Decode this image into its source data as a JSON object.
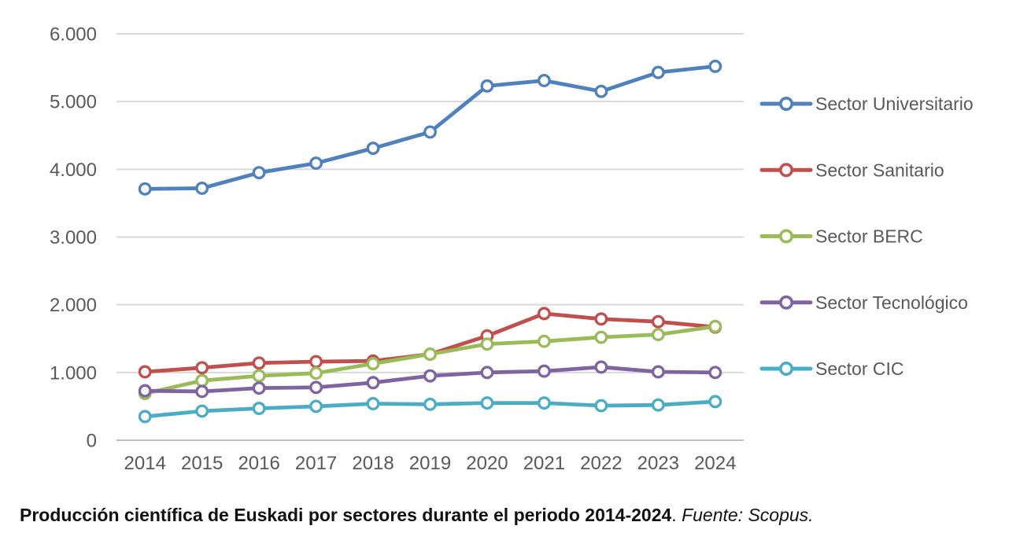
{
  "chart_data": {
    "type": "line",
    "x": [
      2014,
      2015,
      2016,
      2017,
      2018,
      2019,
      2020,
      2021,
      2022,
      2023,
      2024
    ],
    "series": [
      {
        "name": "Sector Universitario",
        "color": "#4F81BD",
        "values": [
          3710,
          3720,
          3950,
          4090,
          4310,
          4550,
          5230,
          5310,
          5150,
          5430,
          5520
        ]
      },
      {
        "name": "Sector Sanitario",
        "color": "#C0504D",
        "values": [
          1010,
          1070,
          1140,
          1160,
          1170,
          1270,
          1540,
          1870,
          1790,
          1750,
          1670
        ]
      },
      {
        "name": "Sector BERC",
        "color": "#9BBB59",
        "values": [
          690,
          880,
          950,
          990,
          1130,
          1270,
          1420,
          1460,
          1520,
          1560,
          1680
        ]
      },
      {
        "name": "Sector Tecnológico",
        "color": "#8064A2",
        "values": [
          730,
          720,
          770,
          780,
          850,
          950,
          1000,
          1020,
          1080,
          1010,
          1000
        ]
      },
      {
        "name": "Sector CIC",
        "color": "#4BACC6",
        "values": [
          350,
          430,
          470,
          500,
          540,
          530,
          550,
          550,
          510,
          520,
          570
        ]
      }
    ],
    "title": "",
    "xlabel": "",
    "ylabel": "",
    "ylim": [
      0,
      6000
    ],
    "ytick_interval": 1000,
    "ytick_labels": [
      "0",
      "1.000",
      "2.000",
      "3.000",
      "4.000",
      "5.000",
      "6.000"
    ],
    "grid": true,
    "legend_position": "right",
    "marker": "open-circle"
  },
  "caption": {
    "bold": "Producción científica de Euskadi por sectores durante el periodo 2014-2024",
    "separator": ". ",
    "italic": "Fuente: Scopus."
  },
  "palette": {
    "gridline": "#D9D9D9",
    "axis_line": "#BFBFBF",
    "tick_label": "#595959",
    "legend_text": "#595959",
    "background": "#FFFFFF"
  }
}
